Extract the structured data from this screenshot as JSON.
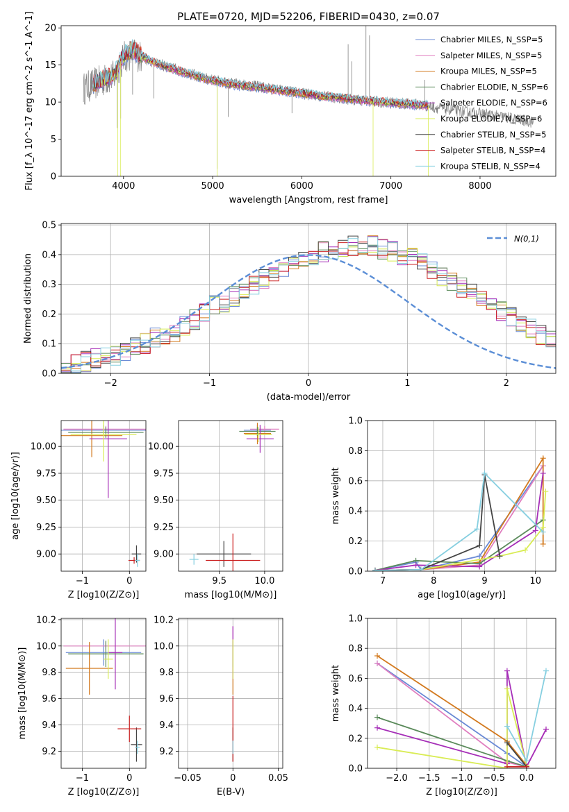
{
  "figure": {
    "title": "PLATE=0720, MJD=52206, FIBERID=0430, z=0.07"
  },
  "models": [
    {
      "name": "Chabrier MILES, N_SSP=5",
      "color": "#6b8bd6"
    },
    {
      "name": "Salpeter MILES, N_SSP=5",
      "color": "#e07fc0"
    },
    {
      "name": "Kroupa MILES, N_SSP=5",
      "color": "#d37a1f"
    },
    {
      "name": "Chabrier ELODIE, N_SSP=6",
      "color": "#5a8a5a"
    },
    {
      "name": "Salpeter ELODIE, N_SSP=6",
      "color": "#a62fb8"
    },
    {
      "name": "Kroupa ELODIE, N_SSP=6",
      "color": "#d9ec55"
    },
    {
      "name": "Chabrier STELIB, N_SSP=5",
      "color": "#444444"
    },
    {
      "name": "Salpeter STELIB, N_SSP=4",
      "color": "#cc2222"
    },
    {
      "name": "Kroupa STELIB, N_SSP=4",
      "color": "#86cfe0"
    }
  ],
  "chart_data": [
    {
      "id": "spectrum",
      "type": "line",
      "xlabel": "wavelength [Angstrom, rest frame]",
      "ylabel": "Flux [f_λ 10^-17 erg cm^-2 s^-1 A^-1]",
      "xlim": [
        3300,
        8850
      ],
      "ylim": [
        0,
        20.3
      ],
      "xticks": [
        4000,
        5000,
        6000,
        7000,
        8000
      ],
      "yticks": [
        0,
        5,
        10,
        15,
        20
      ],
      "grid": false,
      "legend": "top-right",
      "observed_color": "#808080",
      "observed_continuum": [
        [
          3550,
          11.8
        ],
        [
          3700,
          12.6
        ],
        [
          3900,
          13.5
        ],
        [
          4000,
          16.0
        ],
        [
          4100,
          16.6
        ],
        [
          4300,
          15.5
        ],
        [
          4600,
          14.4
        ],
        [
          4900,
          13.2
        ],
        [
          5200,
          12.5
        ],
        [
          5500,
          12.1
        ],
        [
          5800,
          11.5
        ],
        [
          6100,
          11.0
        ],
        [
          6400,
          10.6
        ],
        [
          6700,
          10.2
        ],
        [
          7000,
          9.9
        ],
        [
          7300,
          9.7
        ],
        [
          7500,
          9.3
        ],
        [
          7700,
          8.9
        ],
        [
          7900,
          8.6
        ],
        [
          8100,
          8.3
        ],
        [
          8300,
          7.9
        ],
        [
          8500,
          7.5
        ],
        [
          8600,
          7.3
        ]
      ],
      "model_continuum": [
        [
          3650,
          12.4
        ],
        [
          3900,
          13.8
        ],
        [
          4000,
          16.3
        ],
        [
          4100,
          17.1
        ],
        [
          4300,
          15.5
        ],
        [
          4600,
          14.3
        ],
        [
          4900,
          13.2
        ],
        [
          5200,
          12.4
        ],
        [
          5500,
          12.0
        ],
        [
          5800,
          11.5
        ],
        [
          6100,
          11.0
        ],
        [
          6400,
          10.6
        ],
        [
          6700,
          10.2
        ],
        [
          7000,
          9.9
        ],
        [
          7300,
          9.6
        ],
        [
          7420,
          9.5
        ]
      ],
      "observed_spikes": [
        [
          3930,
          6.5
        ],
        [
          3968,
          7.8
        ],
        [
          4102,
          11.0
        ],
        [
          4340,
          10.5
        ],
        [
          5050,
          1.0
        ],
        [
          5175,
          8.0
        ],
        [
          5890,
          8.5
        ],
        [
          6520,
          17.8
        ],
        [
          6560,
          15.5
        ],
        [
          6720,
          20.3
        ],
        [
          6760,
          19.0
        ],
        [
          7380,
          13.0
        ]
      ]
    },
    {
      "id": "residuals",
      "type": "histogram",
      "xlabel": "(data-model)/error",
      "ylabel": "Normed distribution",
      "xlim": [
        -2.5,
        2.5
      ],
      "ylim": [
        0,
        0.505
      ],
      "xticks": [
        -2,
        -1,
        0,
        1,
        2
      ],
      "yticks": [
        0.0,
        0.1,
        0.2,
        0.3,
        0.4,
        0.5
      ],
      "grid": true,
      "legend": "top-right",
      "reference": {
        "label": "N(0,1)",
        "color": "#5b8ed6",
        "mu": 0,
        "sigma": 1
      },
      "bin_width": 0.1,
      "bin_start": -2.5,
      "base_shape": [
        0.03,
        0.03,
        0.04,
        0.05,
        0.06,
        0.06,
        0.07,
        0.09,
        0.1,
        0.12,
        0.13,
        0.14,
        0.16,
        0.18,
        0.21,
        0.23,
        0.24,
        0.26,
        0.28,
        0.3,
        0.32,
        0.34,
        0.36,
        0.37,
        0.39,
        0.4,
        0.41,
        0.42,
        0.42,
        0.43,
        0.43,
        0.43,
        0.42,
        0.41,
        0.4,
        0.39,
        0.37,
        0.35,
        0.33,
        0.31,
        0.29,
        0.27,
        0.25,
        0.23,
        0.21,
        0.19,
        0.17,
        0.15,
        0.13,
        0.11
      ]
    },
    {
      "id": "age-vs-Z",
      "type": "errorbar",
      "xlabel": "Z [log10(Z/Z⊙)]",
      "ylabel": "age [log10(age/yr)]",
      "xlim": [
        -1.45,
        0.35
      ],
      "ylim": [
        8.84,
        10.24
      ],
      "xticks": [
        -1,
        0
      ],
      "yticks": [
        9.0,
        9.25,
        9.5,
        9.75,
        10.0
      ],
      "grid": true,
      "points": [
        {
          "model": 0,
          "x": -0.55,
          "xerr": 0.9,
          "y": 10.15,
          "yerr": 0.05
        },
        {
          "model": 1,
          "x": -0.5,
          "xerr": 0.9,
          "y": 10.16,
          "yerr": 0.03
        },
        {
          "model": 2,
          "x": -0.8,
          "xerr": 0.65,
          "y": 10.1,
          "yerr": 0.2
        },
        {
          "model": 3,
          "x": -0.5,
          "xerr": 0.8,
          "y": 10.13,
          "yerr": 0.05
        },
        {
          "model": 4,
          "x": -0.45,
          "xerr": 0.4,
          "y": 10.07,
          "yerr": 0.55
        },
        {
          "model": 5,
          "x": -0.55,
          "xerr": 0.7,
          "y": 10.11,
          "yerr": 0.25
        },
        {
          "model": 6,
          "x": 0.15,
          "xerr": 0.1,
          "y": 9.0,
          "yerr": 0.08
        },
        {
          "model": 7,
          "x": 0.1,
          "xerr": 0.12,
          "y": 8.94,
          "yerr": 0.03
        },
        {
          "model": 8,
          "x": 0.17,
          "xerr": 0.05,
          "y": 8.94,
          "yerr": 0.06
        }
      ]
    },
    {
      "id": "age-vs-mass",
      "type": "errorbar",
      "xlabel": "mass [log10(M/M⊙)]",
      "ylabel": "",
      "xlim": [
        9.05,
        10.2
      ],
      "ylim": [
        8.84,
        10.24
      ],
      "xticks": [
        9.5,
        10.0
      ],
      "yticks": [
        9.0,
        9.25,
        9.5,
        9.75,
        10.0
      ],
      "grid": true,
      "points": [
        {
          "model": 0,
          "x": 9.92,
          "xerr": 0.15,
          "y": 10.15,
          "yerr": 0.05
        },
        {
          "model": 1,
          "x": 10.0,
          "xerr": 0.16,
          "y": 10.16,
          "yerr": 0.03
        },
        {
          "model": 2,
          "x": 9.92,
          "xerr": 0.15,
          "y": 10.12,
          "yerr": 0.1
        },
        {
          "model": 3,
          "x": 9.92,
          "xerr": 0.2,
          "y": 10.14,
          "yerr": 0.04
        },
        {
          "model": 4,
          "x": 9.95,
          "xerr": 0.15,
          "y": 10.07,
          "yerr": 0.13
        },
        {
          "model": 5,
          "x": 9.93,
          "xerr": 0.15,
          "y": 10.11,
          "yerr": 0.07
        },
        {
          "model": 6,
          "x": 9.55,
          "xerr": 0.3,
          "y": 9.0,
          "yerr": 0.12
        },
        {
          "model": 7,
          "x": 9.65,
          "xerr": 0.3,
          "y": 8.94,
          "yerr": 0.25
        },
        {
          "model": 8,
          "x": 9.22,
          "xerr": 0.05,
          "y": 8.95,
          "yerr": 0.05
        }
      ]
    },
    {
      "id": "weight-vs-age",
      "type": "line",
      "xlabel": "age [log10(age/yr)]",
      "ylabel": "mass weight",
      "xlim": [
        6.7,
        10.4
      ],
      "ylim": [
        0,
        1.0
      ],
      "xticks": [
        7,
        8,
        9,
        10
      ],
      "yticks": [
        0.0,
        0.2,
        0.4,
        0.6,
        0.8,
        1.0
      ],
      "grid": true,
      "series": [
        {
          "model": 0,
          "x": [
            6.85,
            7.65,
            7.75,
            8.9,
            10.15
          ],
          "y": [
            0.005,
            0.06,
            0.01,
            0.1,
            0.7
          ]
        },
        {
          "model": 1,
          "x": [
            6.85,
            7.75,
            8.9,
            10.15
          ],
          "y": [
            0.005,
            0.01,
            0.04,
            0.7
          ]
        },
        {
          "model": 2,
          "x": [
            6.85,
            7.75,
            8.9,
            10.15,
            10.15
          ],
          "y": [
            0.005,
            0.01,
            0.06,
            0.75,
            0.18
          ]
        },
        {
          "model": 3,
          "x": [
            6.85,
            7.65,
            8.9,
            10.15
          ],
          "y": [
            0.005,
            0.07,
            0.05,
            0.34
          ]
        },
        {
          "model": 4,
          "x": [
            6.85,
            7.65,
            8.9,
            10.0,
            10.15
          ],
          "y": [
            0.005,
            0.04,
            0.03,
            0.27,
            0.65
          ]
        },
        {
          "model": 5,
          "x": [
            6.85,
            7.75,
            9.3,
            9.8,
            10.15,
            10.2
          ],
          "y": [
            0.005,
            0.01,
            0.1,
            0.14,
            0.29,
            0.53
          ]
        },
        {
          "model": 6,
          "x": [
            6.85,
            7.75,
            8.9,
            9.0,
            9.3
          ],
          "y": [
            0.005,
            0.01,
            0.17,
            0.64,
            0.1
          ]
        },
        {
          "model": 7,
          "x": [
            6.85,
            7.75
          ],
          "y": [
            0.005,
            0.01
          ]
        },
        {
          "model": 8,
          "x": [
            6.85,
            7.75,
            8.85,
            9.0,
            10.15
          ],
          "y": [
            0.005,
            0.01,
            0.28,
            0.65,
            0.26
          ]
        }
      ]
    },
    {
      "id": "mass-vs-Z",
      "type": "errorbar",
      "xlabel": "Z [log10(Z/Z⊙)]",
      "ylabel": "mass [log10(M/M⊙)]",
      "xlim": [
        -1.45,
        0.35
      ],
      "ylim": [
        9.07,
        10.21
      ],
      "xticks": [
        -1,
        0
      ],
      "yticks": [
        9.2,
        9.4,
        9.6,
        9.8,
        10.0,
        10.2
      ],
      "grid": true,
      "points": [
        {
          "model": 0,
          "x": -0.55,
          "xerr": 0.8,
          "y": 9.95,
          "yerr": 0.1
        },
        {
          "model": 1,
          "x": -0.5,
          "xerr": 0.9,
          "y": 10.0,
          "yerr": 0.03
        },
        {
          "model": 2,
          "x": -0.85,
          "xerr": 0.5,
          "y": 9.83,
          "yerr": 0.2
        },
        {
          "model": 3,
          "x": -0.5,
          "xerr": 0.8,
          "y": 9.94,
          "yerr": 0.1
        },
        {
          "model": 4,
          "x": -0.3,
          "xerr": 0.15,
          "y": 9.95,
          "yerr": 0.28
        },
        {
          "model": 5,
          "x": -0.45,
          "xerr": 0.1,
          "y": 9.9,
          "yerr": 0.15
        },
        {
          "model": 6,
          "x": 0.15,
          "xerr": 0.12,
          "y": 9.25,
          "yerr": 0.13
        },
        {
          "model": 7,
          "x": 0.0,
          "xerr": 0.25,
          "y": 9.37,
          "yerr": 0.1
        },
        {
          "model": 8,
          "x": 0.17,
          "xerr": 0.05,
          "y": 9.23,
          "yerr": 0.05
        }
      ]
    },
    {
      "id": "mass-vs-EBV",
      "type": "errorbar",
      "xlabel": "E(B-V)",
      "ylabel": "",
      "xlim": [
        -0.06,
        0.055
      ],
      "ylim": [
        9.07,
        10.21
      ],
      "xticks": [
        -0.05,
        0.0,
        0.05
      ],
      "yticks": [
        9.2,
        9.4,
        9.6,
        9.8,
        10.0,
        10.2
      ],
      "grid": true,
      "points": [
        {
          "model": 0,
          "x": 0.0,
          "xerr": 0.0,
          "y": 9.95,
          "yerr": 0.1
        },
        {
          "model": 1,
          "x": 0.0,
          "xerr": 0.0,
          "y": 10.0,
          "yerr": 0.15
        },
        {
          "model": 2,
          "x": 0.0,
          "xerr": 0.0,
          "y": 9.83,
          "yerr": 0.2
        },
        {
          "model": 3,
          "x": 0.0,
          "xerr": 0.0,
          "y": 9.94,
          "yerr": 0.1
        },
        {
          "model": 4,
          "x": 0.0,
          "xerr": 0.0,
          "y": 9.95,
          "yerr": 0.2
        },
        {
          "model": 5,
          "x": 0.0,
          "xerr": 0.0,
          "y": 9.9,
          "yerr": 0.15
        },
        {
          "model": 6,
          "x": 0.0,
          "xerr": 0.0,
          "y": 9.25,
          "yerr": 0.13
        },
        {
          "model": 7,
          "x": 0.0,
          "xerr": 0.0,
          "y": 9.37,
          "yerr": 0.25
        },
        {
          "model": 8,
          "x": 0.0,
          "xerr": 0.0,
          "y": 9.23,
          "yerr": 0.05
        }
      ]
    },
    {
      "id": "weight-vs-Z",
      "type": "line",
      "xlabel": "Z [log10(Z/Z⊙)]",
      "ylabel": "mass weight",
      "xlim": [
        -2.45,
        0.45
      ],
      "ylim": [
        0,
        1.0
      ],
      "xticks": [
        -2.0,
        -1.5,
        -1.0,
        -0.5,
        0.0
      ],
      "xticklabels": [
        "−2.0",
        "−1.5",
        "−1.0",
        "−0.5",
        "0.0"
      ],
      "yticks": [
        0.0,
        0.2,
        0.4,
        0.6,
        0.8,
        1.0
      ],
      "grid": true,
      "series": [
        {
          "model": 0,
          "x": [
            -2.3,
            -0.3,
            0.0
          ],
          "y": [
            0.7,
            0.1,
            0.01
          ]
        },
        {
          "model": 1,
          "x": [
            -2.3,
            -0.3,
            0.0,
            0.3
          ],
          "y": [
            0.7,
            0.04,
            0.01,
            0.26
          ]
        },
        {
          "model": 2,
          "x": [
            -2.3,
            -0.3,
            0.0
          ],
          "y": [
            0.75,
            0.18,
            0.02
          ]
        },
        {
          "model": 3,
          "x": [
            -2.3,
            -0.3,
            0.0
          ],
          "y": [
            0.34,
            0.05,
            0.01
          ]
        },
        {
          "model": 4,
          "x": [
            -2.3,
            -0.3,
            -0.3,
            0.0,
            0.3
          ],
          "y": [
            0.27,
            0.03,
            0.65,
            0.01,
            0.26
          ]
        },
        {
          "model": 5,
          "x": [
            -2.3,
            -0.3,
            -0.3,
            0.0
          ],
          "y": [
            0.14,
            0.0,
            0.53,
            0.02
          ]
        },
        {
          "model": 6,
          "x": [
            -0.3,
            0.0
          ],
          "y": [
            0.17,
            0.01
          ]
        },
        {
          "model": 7,
          "x": [
            -0.3,
            0.0
          ],
          "y": [
            0.01,
            0.01
          ]
        },
        {
          "model": 8,
          "x": [
            -0.3,
            0.0,
            0.3
          ],
          "y": [
            0.28,
            0.05,
            0.65
          ]
        }
      ]
    }
  ]
}
